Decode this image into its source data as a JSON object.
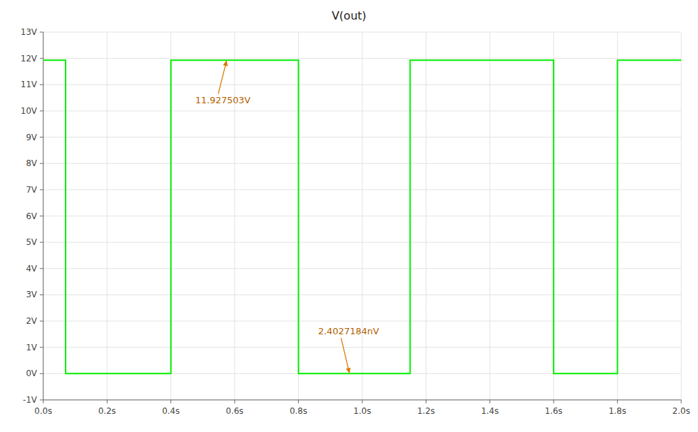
{
  "chart_data": {
    "type": "line",
    "title": "V(out)",
    "x": [
      0.0,
      0.07,
      0.07,
      0.4,
      0.4,
      0.8,
      0.8,
      1.15,
      1.15,
      1.6,
      1.6,
      1.8,
      1.8,
      2.0
    ],
    "values": [
      11.9275,
      11.9275,
      0.0,
      0.0,
      11.9275,
      11.9275,
      0.0,
      0.0,
      11.9275,
      11.9275,
      0.0,
      0.0,
      11.9275,
      11.9275
    ],
    "color": "#00ee00",
    "xlim": [
      0.0,
      2.0
    ],
    "ylim": [
      -1,
      13
    ],
    "xticks": [
      {
        "value": 0.0,
        "label": "0.0s"
      },
      {
        "value": 0.2,
        "label": "0.2s"
      },
      {
        "value": 0.4,
        "label": "0.4s"
      },
      {
        "value": 0.6,
        "label": "0.6s"
      },
      {
        "value": 0.8,
        "label": "0.8s"
      },
      {
        "value": 1.0,
        "label": "1.0s"
      },
      {
        "value": 1.2,
        "label": "1.2s"
      },
      {
        "value": 1.4,
        "label": "1.4s"
      },
      {
        "value": 1.6,
        "label": "1.6s"
      },
      {
        "value": 1.8,
        "label": "1.8s"
      },
      {
        "value": 2.0,
        "label": "2.0s"
      }
    ],
    "yticks": [
      {
        "value": -1,
        "label": "-1V"
      },
      {
        "value": 0,
        "label": "0V"
      },
      {
        "value": 1,
        "label": "1V"
      },
      {
        "value": 2,
        "label": "2V"
      },
      {
        "value": 3,
        "label": "3V"
      },
      {
        "value": 4,
        "label": "4V"
      },
      {
        "value": 5,
        "label": "5V"
      },
      {
        "value": 6,
        "label": "6V"
      },
      {
        "value": 7,
        "label": "7V"
      },
      {
        "value": 8,
        "label": "8V"
      },
      {
        "value": 9,
        "label": "9V"
      },
      {
        "value": 10,
        "label": "10V"
      },
      {
        "value": 11,
        "label": "11V"
      },
      {
        "value": 12,
        "label": "12V"
      },
      {
        "value": 13,
        "label": "13V"
      }
    ],
    "grid": true,
    "annotations": [
      {
        "text": "11.927503V",
        "x": 0.575,
        "y": 11.9275
      },
      {
        "text": "2.4027184nV",
        "x": 0.96,
        "y": 0.0
      }
    ]
  }
}
